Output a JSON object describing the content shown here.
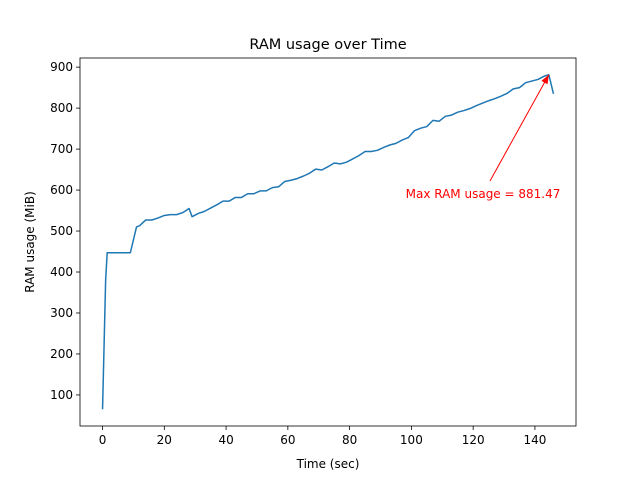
{
  "chart_data": {
    "type": "line",
    "title": "RAM usage over Time",
    "x_label": "Time (sec)",
    "y_label": "RAM usage (MiB)",
    "series": [
      {
        "color": "#1f77b4",
        "x": [
          0,
          1,
          1.5,
          3,
          5,
          7,
          9,
          11,
          12,
          14,
          16,
          18,
          20,
          22,
          24,
          26,
          28,
          29,
          31,
          33,
          35,
          37,
          39,
          41,
          43,
          45,
          47,
          49,
          51,
          53,
          55,
          57,
          59,
          61,
          63,
          65,
          67,
          69,
          71,
          73,
          75,
          77,
          79,
          81,
          83,
          85,
          87,
          89,
          91,
          93,
          95,
          97,
          99,
          101,
          103,
          105,
          107,
          109,
          111,
          113,
          115,
          117,
          119,
          121,
          123,
          125,
          127,
          129,
          131,
          133,
          135,
          137,
          139,
          141,
          143,
          144.5,
          146
        ],
        "values": [
          65,
          380,
          447,
          447,
          447,
          447,
          447,
          510,
          513,
          527,
          527,
          532,
          538,
          540,
          540,
          545,
          555,
          535,
          543,
          548,
          556,
          564,
          573,
          573,
          582,
          582,
          591,
          591,
          598,
          598,
          606,
          608,
          621,
          624,
          628,
          634,
          641,
          651,
          649,
          657,
          666,
          664,
          668,
          676,
          684,
          694,
          694,
          697,
          704,
          710,
          714,
          722,
          728,
          745,
          751,
          755,
          770,
          768,
          780,
          783,
          790,
          794,
          799,
          806,
          812,
          818,
          823,
          829,
          836,
          847,
          850,
          862,
          866,
          870,
          878,
          881.47,
          835
        ]
      }
    ],
    "annotation": {
      "text": "Max RAM usage = 881.47",
      "color": "#ff0000"
    },
    "xlim": [
      -7.3,
      153.3
    ],
    "ylim": [
      24.2,
      922.3
    ],
    "xticks": [
      0,
      20,
      40,
      60,
      80,
      100,
      120,
      140
    ],
    "yticks": [
      100,
      200,
      300,
      400,
      500,
      600,
      700,
      800,
      900
    ],
    "grid": false
  }
}
